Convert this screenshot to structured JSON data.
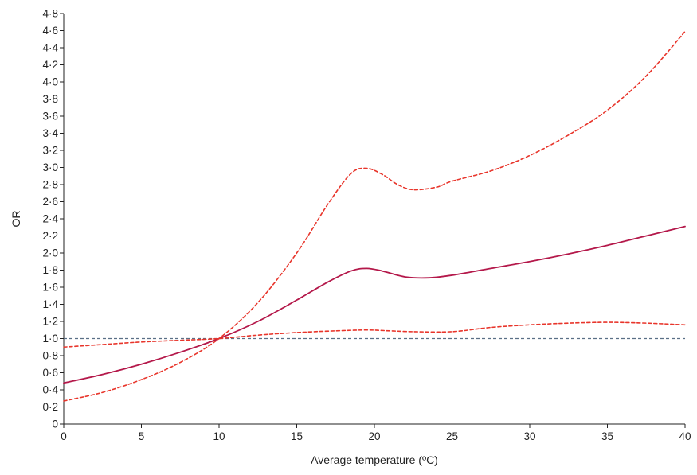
{
  "chart_data": {
    "type": "line",
    "title": "",
    "xlabel": "Average temperature (ºC)",
    "ylabel": "OR",
    "xlim": [
      0,
      40
    ],
    "ylim": [
      0,
      4.8
    ],
    "x_ticks": [
      0,
      5,
      10,
      15,
      20,
      25,
      30,
      35,
      40
    ],
    "x_tick_labels": [
      "0",
      "5",
      "10",
      "15",
      "20",
      "25",
      "30",
      "35",
      "40"
    ],
    "y_ticks": [
      0,
      0.2,
      0.4,
      0.6,
      0.8,
      1.0,
      1.2,
      1.4,
      1.6,
      1.8,
      2.0,
      2.2,
      2.4,
      2.6,
      2.8,
      3.0,
      3.2,
      3.4,
      3.6,
      3.8,
      4.0,
      4.2,
      4.4,
      4.6,
      4.8
    ],
    "y_tick_labels": [
      "0",
      "0·2",
      "0·4",
      "0·6",
      "0·8",
      "1·0",
      "1·2",
      "1·4",
      "1·6",
      "1·8",
      "2·0",
      "2·2",
      "2·4",
      "2·6",
      "2·8",
      "3·0",
      "3·2",
      "3·4",
      "3·6",
      "3·8",
      "4·0",
      "4·2",
      "4·4",
      "4·6",
      "4·8"
    ],
    "grid": false,
    "reference_line": {
      "y": 1.0,
      "color": "#5a6f86",
      "style": "dashed"
    },
    "series": [
      {
        "color": "#b4184a",
        "style": "solid",
        "x": [
          0,
          2.5,
          5,
          7.5,
          10,
          12.5,
          15,
          17,
          18.5,
          19.5,
          20.5,
          22,
          23.5,
          25,
          27.5,
          30,
          32.5,
          35,
          37.5,
          40
        ],
        "y": [
          0.48,
          0.58,
          0.7,
          0.84,
          1.0,
          1.2,
          1.45,
          1.66,
          1.79,
          1.82,
          1.79,
          1.72,
          1.71,
          1.74,
          1.82,
          1.9,
          1.99,
          2.09,
          2.2,
          2.31
        ]
      },
      {
        "color": "#e8352b",
        "style": "dashed",
        "x": [
          0,
          2.5,
          5,
          7.5,
          10,
          12.5,
          15,
          17,
          18.5,
          19.5,
          20.5,
          21.5,
          22.5,
          24,
          25,
          27.5,
          30,
          32.5,
          35,
          37.5,
          40
        ],
        "y": [
          0.27,
          0.37,
          0.52,
          0.72,
          1.0,
          1.42,
          2.0,
          2.57,
          2.93,
          2.99,
          2.92,
          2.8,
          2.74,
          2.77,
          2.84,
          2.96,
          3.14,
          3.38,
          3.67,
          4.07,
          4.59
        ]
      },
      {
        "color": "#e8352b",
        "style": "dashed",
        "x": [
          0,
          2.5,
          5,
          7.5,
          10,
          12.5,
          15,
          17.5,
          19.5,
          21,
          22.5,
          25,
          27.5,
          30,
          32.5,
          35,
          37.5,
          40
        ],
        "y": [
          0.9,
          0.93,
          0.96,
          0.98,
          1.0,
          1.04,
          1.07,
          1.09,
          1.1,
          1.09,
          1.08,
          1.08,
          1.13,
          1.16,
          1.18,
          1.19,
          1.18,
          1.16
        ]
      }
    ]
  }
}
